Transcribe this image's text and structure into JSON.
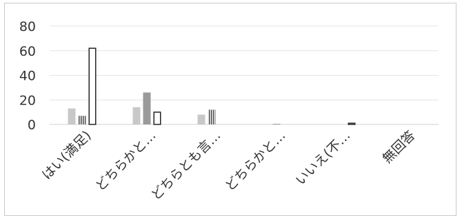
{
  "chart_data": {
    "type": "bar",
    "title": "",
    "xlabel": "",
    "ylabel": "",
    "ylim": [
      0,
      80
    ],
    "yticks": [
      0,
      20,
      40,
      60,
      80
    ],
    "grid": true,
    "legend": "none",
    "categories": [
      "はい(満足)",
      "どちらかと…",
      "どちらとも言…",
      "どちらかと…",
      "いいえ(不…",
      "無回答"
    ],
    "series": [
      {
        "color": "#c8c8c8",
        "pattern": "solid-light",
        "values": [
          13,
          14,
          8,
          0,
          0,
          0
        ]
      },
      {
        "color": "#9a9a9a",
        "pattern": "solid-dark",
        "values": [
          7,
          26,
          12,
          0.5,
          0,
          0
        ]
      },
      {
        "color": "#ffffff",
        "pattern": "outline",
        "values": [
          62,
          10,
          0,
          0,
          1,
          0
        ]
      }
    ]
  }
}
